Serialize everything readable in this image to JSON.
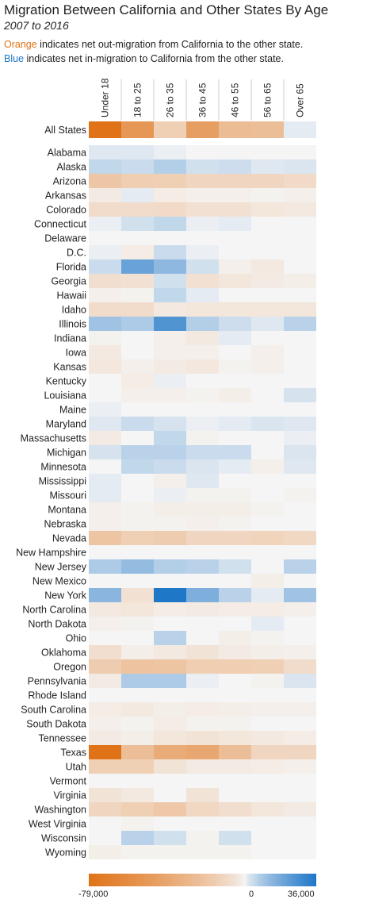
{
  "header": {
    "title": "Migration Between California and Other States By Age",
    "subtitle": "2007 to 2016",
    "note_orange_word": "Orange",
    "note_orange_rest": " indicates net out-migration from California to the other state.",
    "note_blue_word": "Blue",
    "note_blue_rest": " indicates net in-migration to California from the other state."
  },
  "colors": {
    "orange": "#e07318",
    "blue": "#1f77c8",
    "neutral": "#f5f5f5"
  },
  "color_scale": {
    "min_label": "-79,000",
    "mid_label": "0",
    "max_label": "36,000"
  },
  "chart_data": {
    "type": "heatmap",
    "title": "Migration Between California and Other States By Age",
    "subtitle": "2007 to 2016",
    "columns": [
      "Under 18",
      "18 to 25",
      "26 to 35",
      "36 to 45",
      "46 to 55",
      "56 to 65",
      "Over 65"
    ],
    "color_range": [
      -79000,
      36000
    ],
    "summary_row": {
      "label": "All States",
      "values": [
        -79000,
        -50000,
        -14000,
        -45000,
        -25000,
        -24000,
        1000
      ]
    },
    "rows": [
      {
        "label": "Alabama",
        "values": [
          1500,
          1500,
          500,
          0,
          0,
          0,
          0
        ]
      },
      {
        "label": "Alaska",
        "values": [
          5000,
          4000,
          7000,
          3000,
          3500,
          1500,
          2000
        ]
      },
      {
        "label": "Arizona",
        "values": [
          -19000,
          -15000,
          -14000,
          -11000,
          -11000,
          -11000,
          -9000
        ]
      },
      {
        "label": "Arkansas",
        "values": [
          -2500,
          1000,
          -2000,
          -1000,
          -1000,
          -500,
          -1000
        ]
      },
      {
        "label": "Colorado",
        "values": [
          -8000,
          -8000,
          -9000,
          -6000,
          -6000,
          -4000,
          -3000
        ]
      },
      {
        "label": "Connecticut",
        "values": [
          500,
          3000,
          5000,
          500,
          1000,
          0,
          0
        ]
      },
      {
        "label": "Delaware",
        "values": [
          0,
          0,
          0,
          0,
          0,
          0,
          0
        ]
      },
      {
        "label": "D.C.",
        "values": [
          500,
          -2000,
          4000,
          500,
          0,
          0,
          0
        ]
      },
      {
        "label": "Florida",
        "values": [
          4000,
          20000,
          13000,
          3000,
          -1000,
          -3000,
          0
        ]
      },
      {
        "label": "Georgia",
        "values": [
          -7000,
          -6000,
          3000,
          -6000,
          -4000,
          -2500,
          -1500
        ]
      },
      {
        "label": "Hawaii",
        "values": [
          -1000,
          -500,
          5000,
          1000,
          0,
          0,
          0
        ]
      },
      {
        "label": "Idaho",
        "values": [
          -8000,
          -8000,
          -3000,
          -4000,
          -4000,
          -4000,
          -4000
        ]
      },
      {
        "label": "Illinois",
        "values": [
          10000,
          8000,
          25000,
          7000,
          3500,
          1500,
          6000
        ]
      },
      {
        "label": "Indiana",
        "values": [
          -500,
          0,
          -1000,
          -3000,
          1000,
          0,
          0
        ]
      },
      {
        "label": "Iowa",
        "values": [
          -3000,
          0,
          -1000,
          -1000,
          0,
          -1000,
          0
        ]
      },
      {
        "label": "Kansas",
        "values": [
          -3500,
          -1000,
          -2500,
          -3500,
          -500,
          -1000,
          0
        ]
      },
      {
        "label": "Kentucky",
        "values": [
          0,
          -2000,
          500,
          0,
          0,
          0,
          0
        ]
      },
      {
        "label": "Louisiana",
        "values": [
          0,
          -1000,
          -1000,
          -500,
          -1500,
          0,
          2500
        ]
      },
      {
        "label": "Maine",
        "values": [
          500,
          0,
          0,
          0,
          0,
          0,
          0
        ]
      },
      {
        "label": "Maryland",
        "values": [
          1500,
          4000,
          2500,
          500,
          1000,
          2000,
          1500
        ]
      },
      {
        "label": "Massachusetts",
        "values": [
          -2500,
          0,
          5000,
          -500,
          0,
          0,
          500
        ]
      },
      {
        "label": "Michigan",
        "values": [
          2500,
          6000,
          6000,
          4000,
          4000,
          0,
          2000
        ]
      },
      {
        "label": "Minnesota",
        "values": [
          0,
          5000,
          4000,
          2000,
          1000,
          -1000,
          1500
        ]
      },
      {
        "label": "Mississippi",
        "values": [
          1000,
          0,
          -1000,
          1500,
          0,
          0,
          0
        ]
      },
      {
        "label": "Missouri",
        "values": [
          1000,
          0,
          500,
          -500,
          -500,
          0,
          -500
        ]
      },
      {
        "label": "Montana",
        "values": [
          -1000,
          -500,
          -1500,
          -1500,
          -1500,
          -500,
          0
        ]
      },
      {
        "label": "Nebraska",
        "values": [
          -1000,
          -500,
          -500,
          -1000,
          -500,
          0,
          0
        ]
      },
      {
        "label": "Nevada",
        "values": [
          -20000,
          -14000,
          -16000,
          -11000,
          -11000,
          -12000,
          -10000
        ]
      },
      {
        "label": "New Hampshire",
        "values": [
          0,
          0,
          0,
          0,
          0,
          0,
          0
        ]
      },
      {
        "label": "New Jersey",
        "values": [
          8000,
          12000,
          7000,
          6000,
          3000,
          0,
          6000
        ]
      },
      {
        "label": "New Mexico",
        "values": [
          0,
          0,
          0,
          0,
          0,
          -1500,
          0
        ]
      },
      {
        "label": "New York",
        "values": [
          14000,
          -6000,
          36000,
          16000,
          6000,
          1000,
          10000
        ]
      },
      {
        "label": "North Carolina",
        "values": [
          -3000,
          -4000,
          -2000,
          -2500,
          -2000,
          -2000,
          -1000
        ]
      },
      {
        "label": "North Dakota",
        "values": [
          -1000,
          -500,
          0,
          0,
          0,
          1000,
          0
        ]
      },
      {
        "label": "Ohio",
        "values": [
          0,
          0,
          6000,
          0,
          -1500,
          -500,
          0
        ]
      },
      {
        "label": "Oklahoma",
        "values": [
          -7000,
          -1500,
          -3000,
          -5000,
          -2500,
          -1500,
          -1000
        ]
      },
      {
        "label": "Oregon",
        "values": [
          -16000,
          -21000,
          -20000,
          -15000,
          -15000,
          -14000,
          -8000
        ]
      },
      {
        "label": "Pennsylvania",
        "values": [
          -2500,
          8000,
          8000,
          500,
          0,
          -500,
          2000
        ]
      },
      {
        "label": "Rhode Island",
        "values": [
          0,
          0,
          0,
          0,
          0,
          0,
          0
        ]
      },
      {
        "label": "South Carolina",
        "values": [
          -2000,
          -3000,
          -1500,
          -2000,
          -1500,
          -1000,
          -1000
        ]
      },
      {
        "label": "South Dakota",
        "values": [
          -1000,
          -500,
          -2000,
          -500,
          -500,
          0,
          0
        ]
      },
      {
        "label": "Tennessee",
        "values": [
          -2500,
          -1500,
          -4000,
          -5000,
          -4000,
          -3000,
          -2000
        ]
      },
      {
        "label": "Texas",
        "values": [
          -79000,
          -24000,
          -36000,
          -39000,
          -24000,
          -11000,
          -11000
        ]
      },
      {
        "label": "Utah",
        "values": [
          -14000,
          -14000,
          -5000,
          -2500,
          -2500,
          -2000,
          -1000
        ]
      },
      {
        "label": "Vermont",
        "values": [
          0,
          0,
          0,
          0,
          0,
          0,
          0
        ]
      },
      {
        "label": "Virginia",
        "values": [
          -5000,
          -3000,
          0,
          -5000,
          0,
          0,
          0
        ]
      },
      {
        "label": "Washington",
        "values": [
          -11000,
          -14000,
          -18000,
          -10000,
          -7000,
          -4000,
          -2500
        ]
      },
      {
        "label": "West Virginia",
        "values": [
          0,
          -500,
          0,
          0,
          0,
          0,
          0
        ]
      },
      {
        "label": "Wisconsin",
        "values": [
          0,
          6000,
          3000,
          -500,
          3000,
          0,
          0
        ]
      },
      {
        "label": "Wyoming",
        "values": [
          -1500,
          -500,
          -500,
          -500,
          -500,
          0,
          0
        ]
      }
    ]
  }
}
